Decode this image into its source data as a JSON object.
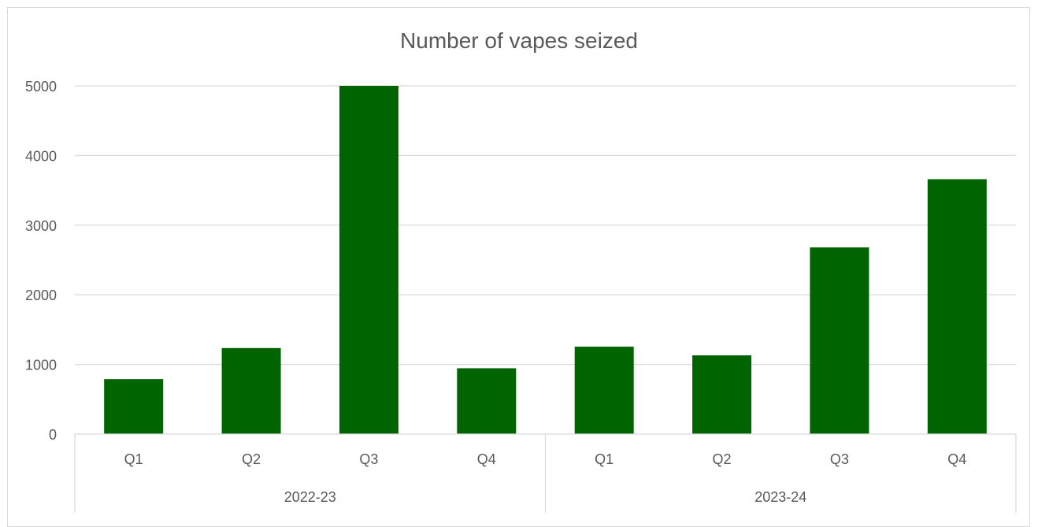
{
  "chart_data": {
    "type": "bar",
    "title": "Number of vapes seized",
    "categories": [
      "Q1",
      "Q2",
      "Q3",
      "Q4",
      "Q1",
      "Q2",
      "Q3",
      "Q4"
    ],
    "groups": [
      {
        "label": "2022-23",
        "count": 4
      },
      {
        "label": "2023-24",
        "count": 4
      }
    ],
    "values": [
      790,
      1235,
      5000,
      945,
      1255,
      1130,
      2680,
      3660
    ],
    "ylim": [
      0,
      5000
    ],
    "yticks": [
      0,
      1000,
      2000,
      3000,
      4000,
      5000
    ],
    "xlabel": "",
    "ylabel": "",
    "grid": true,
    "legend": "none",
    "bar_color": "#006400",
    "grid_color": "#d9d9d9"
  }
}
